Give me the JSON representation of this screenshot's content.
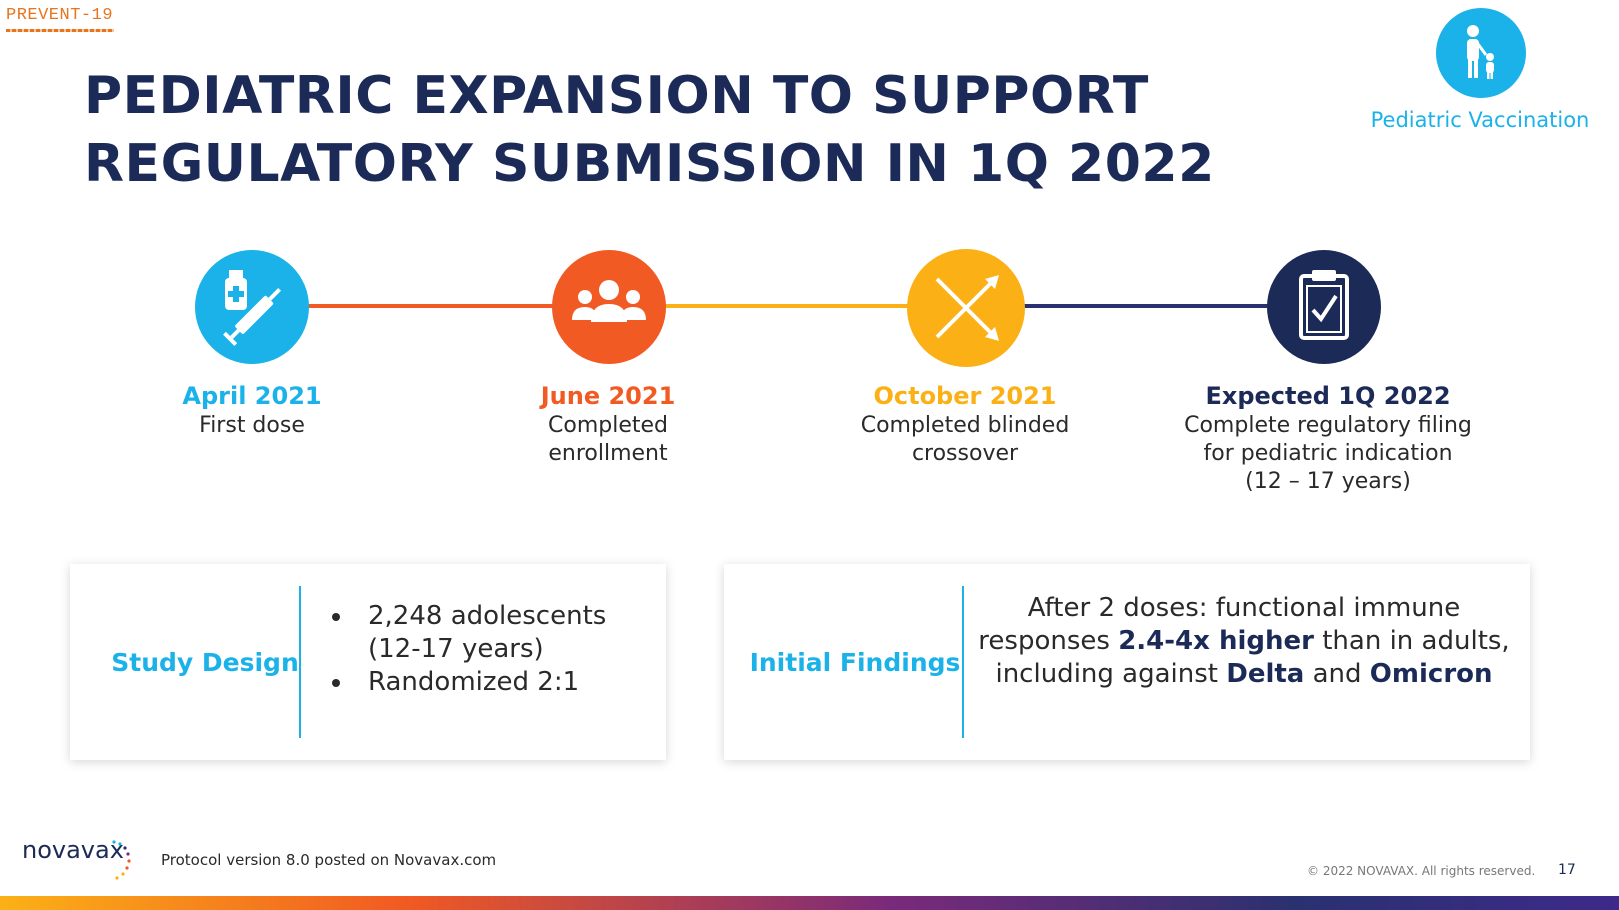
{
  "brand": {
    "top_logo": "PREVENT-19",
    "bottom_logo": "novavax"
  },
  "header": {
    "title_line1": "PEDIATRIC EXPANSION TO SUPPORT",
    "title_line2": "REGULATORY SUBMISSION IN 1Q 2022",
    "badge_label": "Pediatric Vaccination"
  },
  "timeline": [
    {
      "date": "April 2021",
      "desc": [
        "First dose"
      ],
      "icon": "vaccine-syringe-icon",
      "color": "#1ab2e8"
    },
    {
      "date": "June 2021",
      "desc": [
        "Completed",
        "enrollment"
      ],
      "icon": "group-people-icon",
      "color": "#f15a22"
    },
    {
      "date": "October 2021",
      "desc": [
        "Completed blinded",
        "crossover"
      ],
      "icon": "crossover-arrows-icon",
      "color": "#fbb116"
    },
    {
      "date": "Expected 1Q 2022",
      "desc": [
        "Complete regulatory filing",
        "for pediatric indication",
        "(12 – 17 years)"
      ],
      "icon": "clipboard-check-icon",
      "color": "#1b2a57"
    }
  ],
  "study_design": {
    "heading": "Study Design",
    "bullets": [
      "2,248 adolescents (12-17 years)",
      "Randomized 2:1"
    ]
  },
  "initial_findings": {
    "heading": "Initial Findings",
    "p1": "After 2 doses: functional immune responses ",
    "b1": "2.4-4x higher",
    "p2": " than in adults, including against ",
    "b2": "Delta",
    "p3": " and ",
    "b3": "Omicron"
  },
  "footer": {
    "protocol": "Protocol version 8.0 posted on Novavax.com",
    "copyright": "© 2022 NOVAVAX. All rights reserved.",
    "page": "17"
  }
}
